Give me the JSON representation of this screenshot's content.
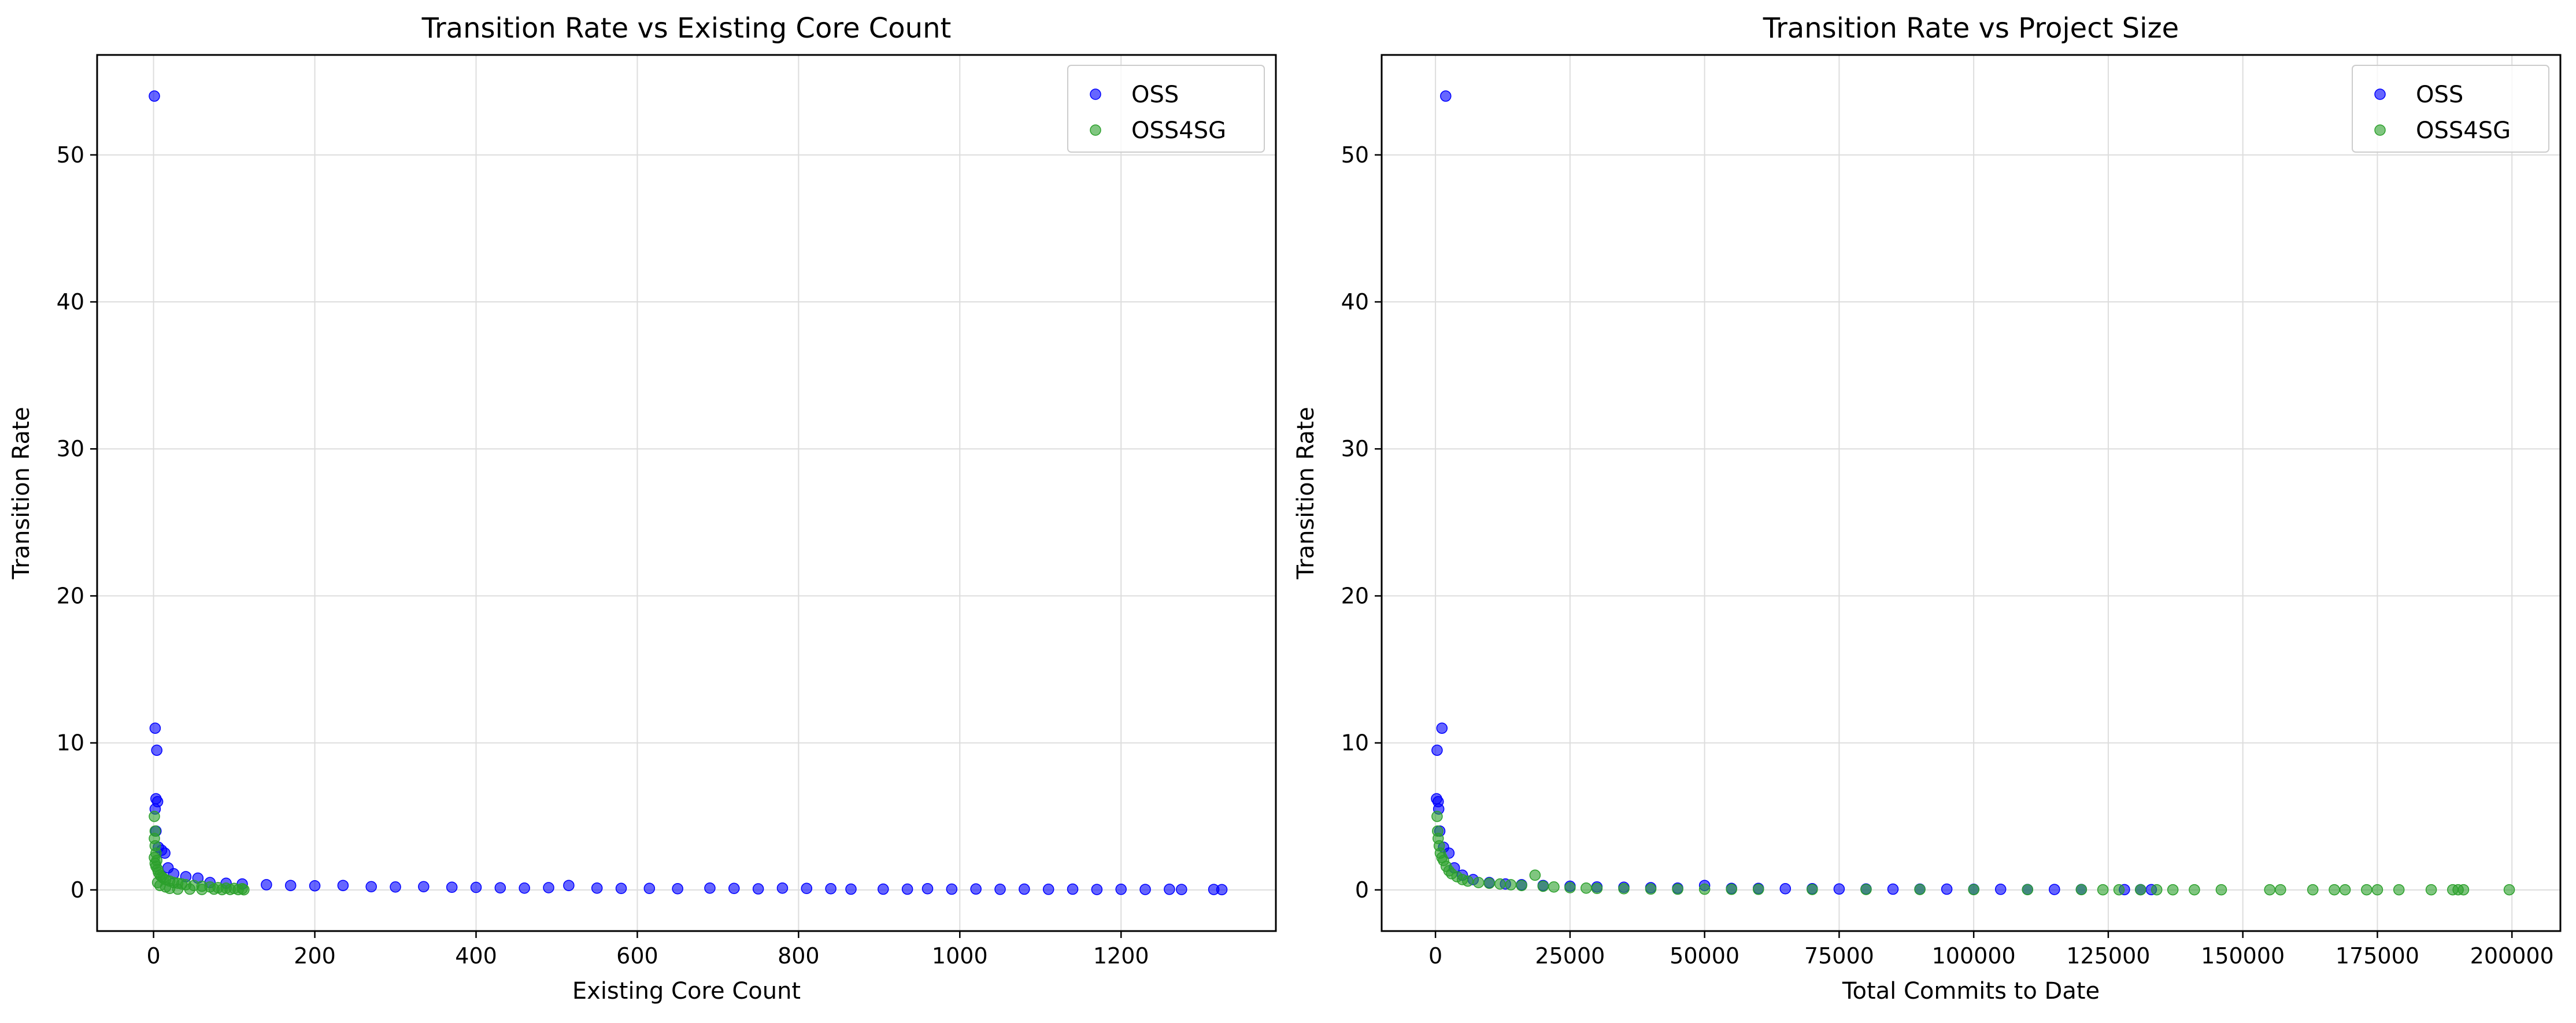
{
  "chart_data": [
    {
      "type": "scatter",
      "title": "Transition Rate vs Existing Core Count",
      "xlabel": "Existing Core Count",
      "ylabel": "Transition Rate",
      "xlim": [
        -70,
        1392
      ],
      "ylim": [
        -2.8,
        56.8
      ],
      "xticks": [
        0,
        200,
        400,
        600,
        800,
        1000,
        1200
      ],
      "yticks": [
        0,
        10,
        20,
        30,
        40,
        50
      ],
      "grid": true,
      "legend": "top-right",
      "series": [
        {
          "name": "OSS",
          "color": "#0000ff",
          "points": [
            [
              1,
              54
            ],
            [
              2,
              11
            ],
            [
              4,
              9.5
            ],
            [
              3,
              6.2
            ],
            [
              5,
              6.0
            ],
            [
              2,
              5.5
            ],
            [
              3,
              4.0
            ],
            [
              6,
              2.9
            ],
            [
              10,
              2.7
            ],
            [
              14,
              2.5
            ],
            [
              18,
              1.5
            ],
            [
              25,
              1.1
            ],
            [
              40,
              0.9
            ],
            [
              55,
              0.8
            ],
            [
              70,
              0.5
            ],
            [
              90,
              0.45
            ],
            [
              110,
              0.4
            ],
            [
              140,
              0.35
            ],
            [
              170,
              0.3
            ],
            [
              200,
              0.28
            ],
            [
              235,
              0.3
            ],
            [
              270,
              0.22
            ],
            [
              300,
              0.2
            ],
            [
              335,
              0.22
            ],
            [
              370,
              0.18
            ],
            [
              400,
              0.17
            ],
            [
              430,
              0.14
            ],
            [
              460,
              0.12
            ],
            [
              490,
              0.15
            ],
            [
              515,
              0.3
            ],
            [
              550,
              0.12
            ],
            [
              580,
              0.1
            ],
            [
              615,
              0.1
            ],
            [
              650,
              0.08
            ],
            [
              690,
              0.12
            ],
            [
              720,
              0.1
            ],
            [
              750,
              0.07
            ],
            [
              780,
              0.12
            ],
            [
              810,
              0.1
            ],
            [
              840,
              0.08
            ],
            [
              865,
              0.05
            ],
            [
              905,
              0.05
            ],
            [
              935,
              0.05
            ],
            [
              960,
              0.08
            ],
            [
              990,
              0.05
            ],
            [
              1020,
              0.06
            ],
            [
              1050,
              0.04
            ],
            [
              1080,
              0.05
            ],
            [
              1110,
              0.04
            ],
            [
              1140,
              0.05
            ],
            [
              1170,
              0.03
            ],
            [
              1200,
              0.04
            ],
            [
              1230,
              0.03
            ],
            [
              1260,
              0.04
            ],
            [
              1275,
              0.03
            ],
            [
              1315,
              0.03
            ],
            [
              1325,
              0.02
            ]
          ]
        },
        {
          "name": "OSS4SG",
          "color": "#2ca02c",
          "points": [
            [
              1,
              5.0
            ],
            [
              2,
              4.0
            ],
            [
              1,
              3.5
            ],
            [
              2,
              3.0
            ],
            [
              3,
              2.5
            ],
            [
              1,
              2.2
            ],
            [
              4,
              2.0
            ],
            [
              2,
              1.8
            ],
            [
              3,
              1.6
            ],
            [
              5,
              1.4
            ],
            [
              6,
              1.2
            ],
            [
              8,
              1.0
            ],
            [
              10,
              0.9
            ],
            [
              12,
              0.8
            ],
            [
              15,
              0.7
            ],
            [
              20,
              0.6
            ],
            [
              25,
              0.5
            ],
            [
              30,
              0.45
            ],
            [
              35,
              0.4
            ],
            [
              40,
              0.35
            ],
            [
              50,
              0.3
            ],
            [
              60,
              0.25
            ],
            [
              70,
              0.2
            ],
            [
              80,
              0.15
            ],
            [
              90,
              0.12
            ],
            [
              100,
              0.1
            ],
            [
              110,
              0.08
            ],
            [
              5,
              0.5
            ],
            [
              8,
              0.3
            ],
            [
              15,
              0.2
            ],
            [
              20,
              0.1
            ],
            [
              30,
              0.05
            ],
            [
              45,
              0.05
            ],
            [
              60,
              0.03
            ],
            [
              75,
              0.05
            ],
            [
              85,
              0.02
            ],
            [
              95,
              0.03
            ],
            [
              105,
              0.02
            ],
            [
              112,
              0.01
            ]
          ]
        }
      ]
    },
    {
      "type": "scatter",
      "title": "Transition Rate vs Project Size",
      "xlabel": "Total Commits to Date",
      "ylabel": "Transition Rate",
      "xlim": [
        -10000,
        209000
      ],
      "ylim": [
        -2.8,
        56.8
      ],
      "xticks": [
        0,
        25000,
        50000,
        75000,
        100000,
        125000,
        150000,
        175000,
        200000
      ],
      "yticks": [
        0,
        10,
        20,
        30,
        40,
        50
      ],
      "grid": true,
      "legend": "top-right",
      "series": [
        {
          "name": "OSS",
          "color": "#0000ff",
          "points": [
            [
              1900,
              54
            ],
            [
              1200,
              11
            ],
            [
              300,
              9.5
            ],
            [
              200,
              6.2
            ],
            [
              500,
              6.0
            ],
            [
              600,
              5.5
            ],
            [
              800,
              4.0
            ],
            [
              1500,
              2.9
            ],
            [
              2500,
              2.5
            ],
            [
              3500,
              1.5
            ],
            [
              5000,
              1.0
            ],
            [
              7000,
              0.7
            ],
            [
              10000,
              0.5
            ],
            [
              13000,
              0.4
            ],
            [
              16000,
              0.35
            ],
            [
              20000,
              0.3
            ],
            [
              25000,
              0.25
            ],
            [
              30000,
              0.2
            ],
            [
              35000,
              0.18
            ],
            [
              40000,
              0.15
            ],
            [
              45000,
              0.12
            ],
            [
              50000,
              0.3
            ],
            [
              55000,
              0.1
            ],
            [
              60000,
              0.1
            ],
            [
              65000,
              0.08
            ],
            [
              70000,
              0.08
            ],
            [
              75000,
              0.06
            ],
            [
              80000,
              0.06
            ],
            [
              85000,
              0.05
            ],
            [
              90000,
              0.05
            ],
            [
              95000,
              0.05
            ],
            [
              100000,
              0.04
            ],
            [
              105000,
              0.04
            ],
            [
              110000,
              0.03
            ],
            [
              115000,
              0.03
            ],
            [
              120000,
              0.03
            ],
            [
              128000,
              0.02
            ],
            [
              131000,
              0.02
            ],
            [
              133000,
              0.02
            ]
          ]
        },
        {
          "name": "OSS4SG",
          "color": "#2ca02c",
          "points": [
            [
              300,
              5.0
            ],
            [
              400,
              4.0
            ],
            [
              500,
              3.5
            ],
            [
              700,
              3.0
            ],
            [
              900,
              2.5
            ],
            [
              1200,
              2.2
            ],
            [
              1500,
              2.0
            ],
            [
              2000,
              1.6
            ],
            [
              2500,
              1.3
            ],
            [
              3000,
              1.1
            ],
            [
              4000,
              0.9
            ],
            [
              5000,
              0.7
            ],
            [
              6000,
              0.6
            ],
            [
              8000,
              0.5
            ],
            [
              10000,
              0.45
            ],
            [
              12000,
              0.4
            ],
            [
              14000,
              0.35
            ],
            [
              16000,
              0.3
            ],
            [
              18500,
              1.0
            ],
            [
              20000,
              0.25
            ],
            [
              22000,
              0.2
            ],
            [
              25000,
              0.15
            ],
            [
              28000,
              0.12
            ],
            [
              30000,
              0.1
            ],
            [
              35000,
              0.08
            ],
            [
              40000,
              0.06
            ],
            [
              45000,
              0.05
            ],
            [
              50000,
              0.05
            ],
            [
              55000,
              0.04
            ],
            [
              60000,
              0.04
            ],
            [
              70000,
              0.03
            ],
            [
              80000,
              0.03
            ],
            [
              90000,
              0.03
            ],
            [
              100000,
              0.02
            ],
            [
              110000,
              0.02
            ],
            [
              120000,
              0.02
            ],
            [
              124000,
              0.01
            ],
            [
              127000,
              0.01
            ],
            [
              131000,
              0.01
            ],
            [
              134000,
              0.01
            ],
            [
              137000,
              0.01
            ],
            [
              141000,
              0.01
            ],
            [
              146000,
              0.01
            ],
            [
              155000,
              0.01
            ],
            [
              157000,
              0.01
            ],
            [
              163000,
              0.01
            ],
            [
              167000,
              0.01
            ],
            [
              169000,
              0.01
            ],
            [
              173000,
              0.01
            ],
            [
              175000,
              0.01
            ],
            [
              179000,
              0.01
            ],
            [
              185000,
              0.01
            ],
            [
              189000,
              0.01
            ],
            [
              190000,
              0.01
            ],
            [
              191000,
              0.01
            ],
            [
              199500,
              0.01
            ]
          ]
        }
      ]
    }
  ]
}
